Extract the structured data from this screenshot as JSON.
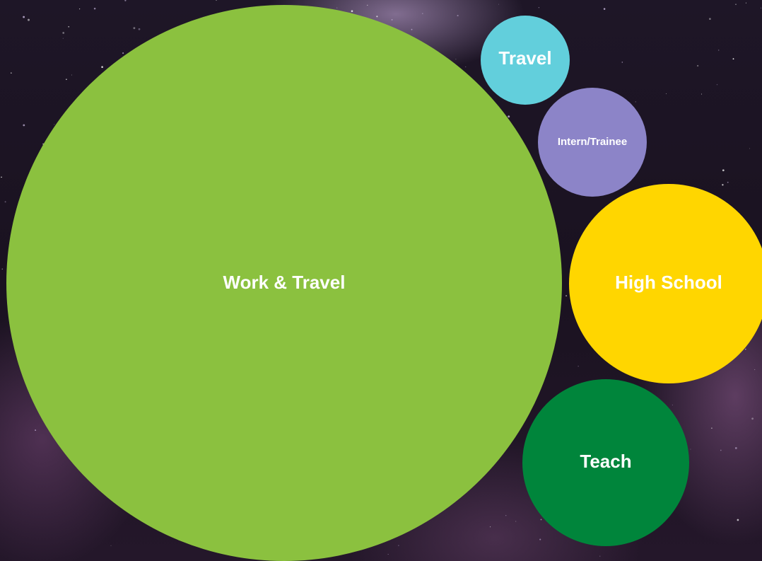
{
  "nodes": [
    {
      "label": "Work & Travel"
    },
    {
      "label": "Travel"
    },
    {
      "label": "Intern/Trainee"
    },
    {
      "label": "High School"
    },
    {
      "label": "Teach"
    }
  ]
}
